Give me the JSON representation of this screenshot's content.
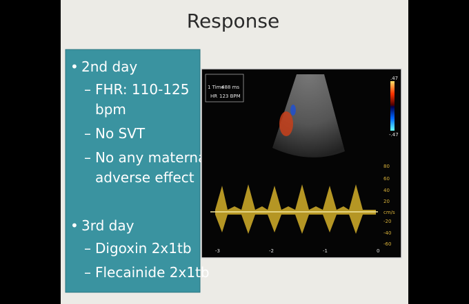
{
  "slide": {
    "title": "Response",
    "bullets": [
      {
        "text": "2nd day",
        "subs": [
          {
            "lines": [
              "FHR: 110-125",
              "bpm"
            ]
          },
          {
            "lines": [
              "No SVT"
            ]
          },
          {
            "lines": [
              "No any maternal",
              "adverse effect"
            ]
          }
        ]
      },
      {
        "text": "3rd day",
        "subs": [
          {
            "lines": [
              "Digoxin 2x1tb"
            ]
          },
          {
            "lines": [
              "Flecainide 2x1tb"
            ]
          }
        ]
      }
    ],
    "ultrasound": {
      "info": [
        "1 Time",
        "488 ms",
        "HR",
        "123 BPM"
      ],
      "color_scale": [
        ".47",
        "-.47"
      ],
      "velocity_scale": [
        "80",
        "60",
        "40",
        "20",
        "-20",
        "-40",
        "-60"
      ],
      "velocity_unit": "cm/s",
      "time_axis": [
        "-3",
        "-2",
        "-1",
        "0"
      ]
    }
  }
}
